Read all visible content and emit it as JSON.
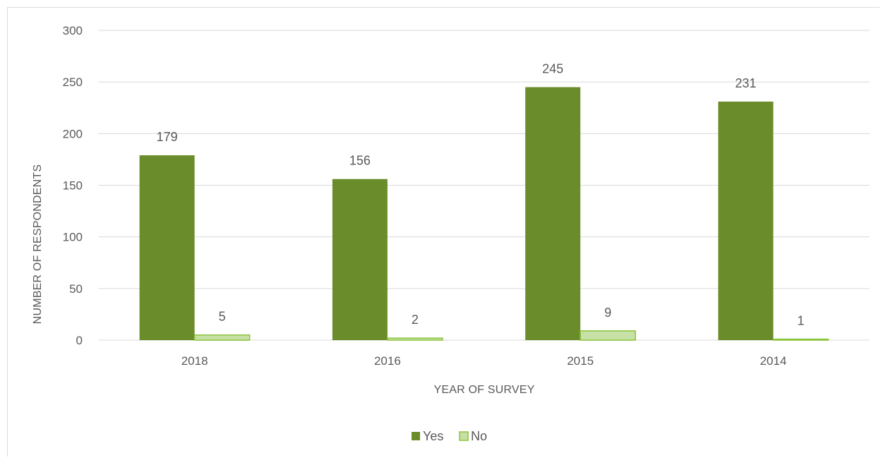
{
  "chart_data": {
    "type": "bar",
    "categories": [
      "2018",
      "2016",
      "2015",
      "2014"
    ],
    "series": [
      {
        "name": "Yes",
        "values": [
          179,
          156,
          245,
          231
        ],
        "color": "#6a8c2a"
      },
      {
        "name": "No",
        "values": [
          5,
          2,
          9,
          1
        ],
        "color": "#c7e0a6"
      }
    ],
    "xlabel": "YEAR OF SURVEY",
    "ylabel": "NUMBER OF RESPONDENTS",
    "ylim": [
      0,
      300
    ],
    "yticks": [
      "0",
      "50",
      "100",
      "150",
      "200",
      "250",
      "300"
    ],
    "grid": true,
    "legend_position": "bottom",
    "border_color_no": "#8cc43c"
  }
}
